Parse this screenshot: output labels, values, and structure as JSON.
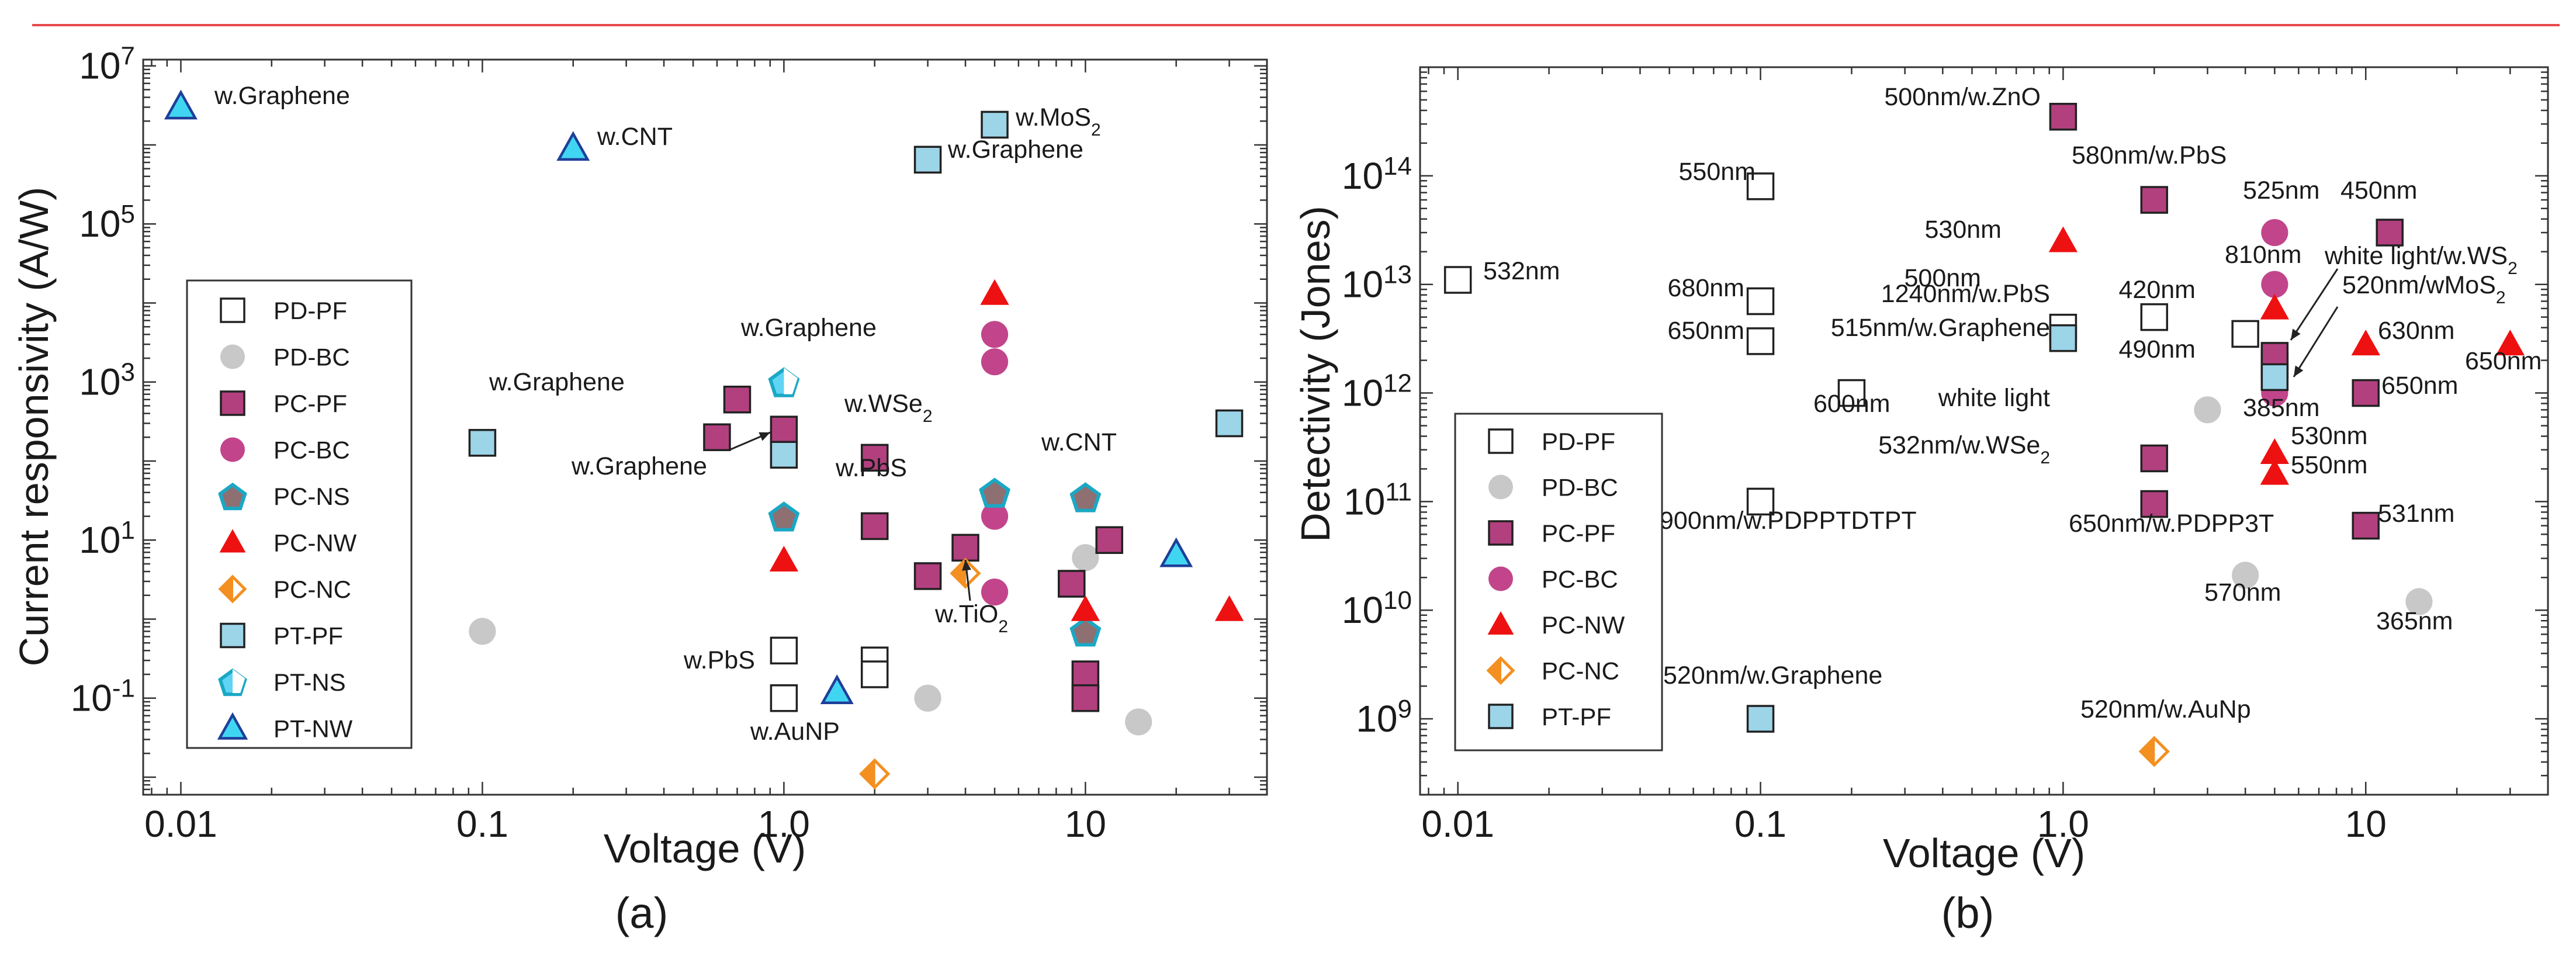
{
  "colors": {
    "pd_pf_fill": "#ffffff",
    "bc_gray": "#c8c8c8",
    "pc_pf": "#b2407e",
    "pc_bc": "#c2458b",
    "pc_ns": "#8e6f72",
    "ns_edge": "#1aa8c4",
    "pc_nw": "#ee1111",
    "pc_nc": "#f39021",
    "pt_pf": "#9cd4e8",
    "pt_ns": "#5fd4f4",
    "pt_nw": "#40d6f2",
    "edge": "#222222"
  },
  "chart_data": [
    {
      "type": "scatter",
      "panel_label": "(a)",
      "xlabel": "Voltage (V)",
      "ylabel": "Current responsivity (A/W)",
      "xscale": "log",
      "yscale": "log",
      "xlim": [
        0.0075,
        40
      ],
      "ylim": [
        0.006,
        12000000
      ],
      "xticks": [
        {
          "v": 0.01,
          "label": "0.01"
        },
        {
          "v": 0.1,
          "label": "0.1"
        },
        {
          "v": 1,
          "label": "1.0"
        },
        {
          "v": 10,
          "label": "10"
        }
      ],
      "yticks": [
        {
          "v": 0.1,
          "base": "10",
          "exp": "-1"
        },
        {
          "v": 10,
          "base": "10",
          "exp": "1"
        },
        {
          "v": 1000,
          "base": "10",
          "exp": "3"
        },
        {
          "v": 100000,
          "base": "10",
          "exp": "5"
        },
        {
          "v": 10000000,
          "base": "10",
          "exp": "7"
        }
      ],
      "legend": {
        "position": "left",
        "entries": [
          {
            "key": "PD-PF",
            "label": "PD-PF"
          },
          {
            "key": "PD-BC",
            "label": "PD-BC"
          },
          {
            "key": "PC-PF",
            "label": "PC-PF"
          },
          {
            "key": "PC-BC",
            "label": "PC-BC"
          },
          {
            "key": "PC-NS",
            "label": "PC-NS"
          },
          {
            "key": "PC-NW",
            "label": "PC-NW"
          },
          {
            "key": "PC-NC",
            "label": "PC-NC"
          },
          {
            "key": "PT-PF",
            "label": "PT-PF"
          },
          {
            "key": "PT-NS",
            "label": "PT-NS"
          },
          {
            "key": "PT-NW",
            "label": "PT-NW"
          }
        ]
      },
      "series": [
        {
          "name": "PD-PF",
          "points": [
            [
              1.0,
              0.4
            ],
            [
              1.0,
              0.1
            ],
            [
              2.0,
              0.3
            ],
            [
              2.0,
              0.2
            ],
            [
              10,
              0.1
            ]
          ]
        },
        {
          "name": "PD-BC",
          "points": [
            [
              0.1,
              0.7
            ],
            [
              3.0,
              0.1
            ],
            [
              10,
              6
            ],
            [
              15,
              0.05
            ]
          ]
        },
        {
          "name": "PC-PF",
          "points": [
            [
              0.6,
              200
            ],
            [
              0.7,
              600
            ],
            [
              1.0,
              250
            ],
            [
              2.0,
              110
            ],
            [
              2.0,
              15
            ],
            [
              3.0,
              3.5
            ],
            [
              4.0,
              8
            ],
            [
              9.0,
              2.8
            ],
            [
              10,
              0.2
            ],
            [
              10,
              0.1
            ],
            [
              12,
              10
            ]
          ]
        },
        {
          "name": "PC-BC",
          "points": [
            [
              5.0,
              4000
            ],
            [
              5.0,
              1800
            ],
            [
              5.0,
              20
            ],
            [
              5.0,
              2.2
            ]
          ]
        },
        {
          "name": "PC-NS",
          "points": [
            [
              1.0,
              20
            ],
            [
              5.0,
              40
            ],
            [
              10,
              35
            ],
            [
              10,
              0.7
            ]
          ]
        },
        {
          "name": "PC-NW",
          "points": [
            [
              1.0,
              5.5
            ],
            [
              5.0,
              13000
            ],
            [
              10,
              1.3
            ],
            [
              30,
              1.3
            ]
          ]
        },
        {
          "name": "PC-NC",
          "points": [
            [
              4.0,
              3.8
            ],
            [
              2.0,
              0.011
            ]
          ]
        },
        {
          "name": "PT-PF",
          "points": [
            [
              0.1,
              170
            ],
            [
              1.0,
              120
            ],
            [
              3.0,
              650000
            ],
            [
              5.0,
              1800000
            ],
            [
              30,
              300
            ]
          ]
        },
        {
          "name": "PT-NS",
          "points": [
            [
              1.0,
              1000
            ]
          ]
        },
        {
          "name": "PT-NW",
          "points": [
            [
              0.01,
              3000000
            ],
            [
              0.2,
              900000
            ],
            [
              1.5,
              0.12
            ],
            [
              20,
              6.5
            ]
          ]
        }
      ],
      "annotations": [
        {
          "text": "w.Graphene"
        },
        {
          "text": "w.CNT"
        },
        {
          "text": "w.MoS",
          "sub": "2"
        },
        {
          "text": "w.Graphene"
        },
        {
          "text": "w.Graphene"
        },
        {
          "text": "w.Graphene"
        },
        {
          "text": "w.Graphene"
        },
        {
          "text": "w.WSe",
          "sub": "2"
        },
        {
          "text": "w.PbS"
        },
        {
          "text": "w.CNT"
        },
        {
          "text": "w.TiO",
          "sub": "2"
        },
        {
          "text": "w.PbS"
        },
        {
          "text": "w.AuNP"
        }
      ]
    },
    {
      "type": "scatter",
      "panel_label": "(b)",
      "xlabel": "Voltage (V)",
      "ylabel": "Detectivity (Jones)",
      "xscale": "log",
      "yscale": "log",
      "xlim": [
        0.0075,
        40
      ],
      "ylim": [
        200000000,
        1000000000000000
      ],
      "xticks": [
        {
          "v": 0.01,
          "label": "0.01"
        },
        {
          "v": 0.1,
          "label": "0.1"
        },
        {
          "v": 1,
          "label": "1.0"
        },
        {
          "v": 10,
          "label": "10"
        }
      ],
      "yticks": [
        {
          "v": 1000000000,
          "base": "10",
          "exp": "9"
        },
        {
          "v": 10000000000,
          "base": "10",
          "exp": "10"
        },
        {
          "v": 100000000000,
          "base": "10",
          "exp": "11"
        },
        {
          "v": 1000000000000,
          "base": "10",
          "exp": "12"
        },
        {
          "v": 10000000000000,
          "base": "10",
          "exp": "13"
        },
        {
          "v": 100000000000000,
          "base": "10",
          "exp": "14"
        }
      ],
      "legend": {
        "position": "bottom-left",
        "entries": [
          {
            "key": "PD-PF",
            "label": "PD-PF"
          },
          {
            "key": "PD-BC",
            "label": "PD-BC"
          },
          {
            "key": "PC-PF",
            "label": "PC-PF"
          },
          {
            "key": "PC-BC",
            "label": "PC-BC"
          },
          {
            "key": "PC-NW",
            "label": "PC-NW"
          },
          {
            "key": "PC-NC",
            "label": "PC-NC"
          },
          {
            "key": "PT-PF",
            "label": "PT-PF"
          }
        ]
      },
      "series": [
        {
          "name": "PD-PF",
          "points": [
            [
              0.01,
              11000000000000
            ],
            [
              0.1,
              80000000000000
            ],
            [
              0.1,
              7000000000000
            ],
            [
              0.1,
              3000000000000
            ],
            [
              0.1,
              100000000000
            ],
            [
              0.2,
              1000000000000
            ],
            [
              1.0,
              4000000000000
            ],
            [
              2.0,
              5000000000000
            ],
            [
              4.0,
              3500000000000
            ],
            [
              5.0,
              1800000000000
            ]
          ]
        },
        {
          "name": "PD-BC",
          "points": [
            [
              3.0,
              700000000000
            ],
            [
              4.0,
              21000000000
            ],
            [
              15,
              12000000000
            ]
          ]
        },
        {
          "name": "PC-PF",
          "points": [
            [
              1.0,
              350000000000000
            ],
            [
              2.0,
              60000000000000
            ],
            [
              2.0,
              250000000000
            ],
            [
              2.0,
              95000000000
            ],
            [
              5.0,
              2200000000000
            ],
            [
              12,
              30000000000000
            ],
            [
              10,
              1000000000000
            ],
            [
              10,
              60000000000
            ]
          ]
        },
        {
          "name": "PC-BC",
          "points": [
            [
              5.0,
              30000000000000
            ],
            [
              5.0,
              10000000000000
            ],
            [
              5.0,
              1000000000000
            ]
          ]
        },
        {
          "name": "PC-NW",
          "points": [
            [
              1.0,
              25000000000000
            ],
            [
              5.0,
              6000000000000
            ],
            [
              5.0,
              280000000000
            ],
            [
              5.0,
              180000000000
            ],
            [
              10,
              2800000000000
            ],
            [
              30,
              2800000000000
            ]
          ]
        },
        {
          "name": "PC-NC",
          "points": [
            [
              2.0,
              500000000
            ]
          ]
        },
        {
          "name": "PT-PF",
          "points": [
            [
              1.0,
              3200000000000
            ],
            [
              0.1,
              1000000000
            ],
            [
              5.0,
              1400000000000
            ]
          ]
        }
      ],
      "annotations": [
        {
          "text": "500nm/w.ZnO"
        },
        {
          "text": "580nm/w.PbS"
        },
        {
          "text": "550nm"
        },
        {
          "text": "532nm"
        },
        {
          "text": "530nm"
        },
        {
          "text": "525nm"
        },
        {
          "text": "450nm"
        },
        {
          "text": "810nm"
        },
        {
          "text": "white light/w.WS",
          "sub": "2"
        },
        {
          "text": "680nm"
        },
        {
          "text": "500nm"
        },
        {
          "text": "420nm"
        },
        {
          "text": "520nm/wMoS",
          "sub": "2"
        },
        {
          "text": "1240nm/w.PbS"
        },
        {
          "text": "650nm"
        },
        {
          "text": "515nm/w.Graphene"
        },
        {
          "text": "490nm"
        },
        {
          "text": "630nm"
        },
        {
          "text": "650nm"
        },
        {
          "text": "600nm"
        },
        {
          "text": "white light"
        },
        {
          "text": "385nm"
        },
        {
          "text": "650nm"
        },
        {
          "text": "530nm"
        },
        {
          "text": "532nm/w.WSe",
          "sub": "2"
        },
        {
          "text": "550nm"
        },
        {
          "text": "900nm/w.PDPPTDTPT"
        },
        {
          "text": "650nm/w.PDPP3T"
        },
        {
          "text": "531nm"
        },
        {
          "text": "570nm"
        },
        {
          "text": "365nm"
        },
        {
          "text": "520nm/w.Graphene"
        },
        {
          "text": "520nm/w.AuNp"
        }
      ]
    }
  ]
}
